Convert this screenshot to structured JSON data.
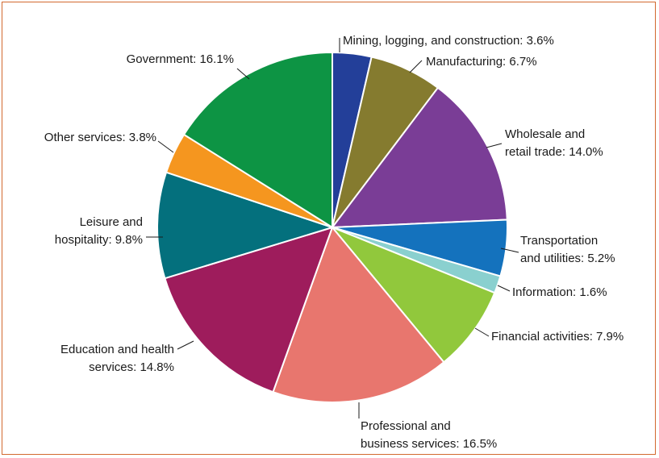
{
  "chart_data": {
    "type": "pie",
    "title": "",
    "slices": [
      {
        "name": "Mining, logging, and construction",
        "value": 3.6,
        "label": [
          "Mining, logging, and construction: 3.6%"
        ],
        "color": "#233f99"
      },
      {
        "name": "Manufacturing",
        "value": 6.7,
        "label": [
          "Manufacturing: 6.7%"
        ],
        "color": "#857b2f"
      },
      {
        "name": "Wholesale and retail trade",
        "value": 14.0,
        "label": [
          "Wholesale and",
          "retail trade: 14.0%"
        ],
        "color": "#7a3d96"
      },
      {
        "name": "Transportation and utilities",
        "value": 5.2,
        "label": [
          "Transportation",
          "and utilities: 5.2%"
        ],
        "color": "#1472bd"
      },
      {
        "name": "Information",
        "value": 1.6,
        "label": [
          "Information: 1.6%"
        ],
        "color": "#8ad0cf"
      },
      {
        "name": "Financial activities",
        "value": 7.9,
        "label": [
          "Financial activities: 7.9%"
        ],
        "color": "#91c83c"
      },
      {
        "name": "Professional and business services",
        "value": 16.5,
        "label": [
          "Professional and",
          "business services: 16.5%"
        ],
        "color": "#e8766e"
      },
      {
        "name": "Education and health services",
        "value": 14.8,
        "label": [
          "Education and health",
          "services: 14.8%"
        ],
        "color": "#9e1c5c"
      },
      {
        "name": "Leisure and hospitality",
        "value": 9.8,
        "label": [
          "Leisure and",
          "hospitality: 9.8%"
        ],
        "color": "#04707d"
      },
      {
        "name": "Other services",
        "value": 3.8,
        "label": [
          "Other services: 3.8%"
        ],
        "color": "#f5961f"
      },
      {
        "name": "Government",
        "value": 16.1,
        "label": [
          "Government: 16.1%"
        ],
        "color": "#0d9444"
      }
    ]
  }
}
